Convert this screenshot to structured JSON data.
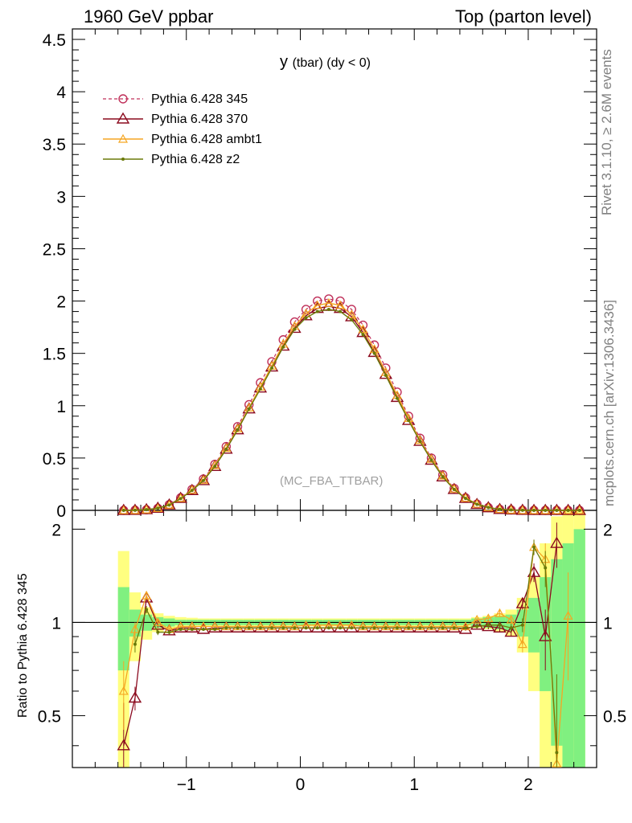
{
  "header": {
    "left": "1960 GeV ppbar",
    "right": "Top (parton level)"
  },
  "side_labels": {
    "rivet": "Rivet 3.1.10, ≥ 2.6M events",
    "mcplots": "mcplots.cern.ch [arXiv:1306.3436]"
  },
  "colors": {
    "p345": "#c0305a",
    "p370": "#8b0a1e",
    "ambt1": "#f5a623",
    "z2": "#6b7a0a",
    "band_inner": "#80f080",
    "band_outer": "#ffff80"
  },
  "chart_data": [
    {
      "type": "line",
      "title": "y",
      "title_sub": "(tbar) (dy < 0)",
      "annotation": "(MC_FBA_TTBAR)",
      "xlim": [
        -2.0,
        2.6
      ],
      "ylim": [
        0,
        4.6
      ],
      "yticks": [
        "0",
        "0.5",
        "1",
        "1.5",
        "2",
        "2.5",
        "3",
        "3.5",
        "4",
        "4.5"
      ],
      "legend_placement": "top-left",
      "x": [
        -1.55,
        -1.45,
        -1.35,
        -1.25,
        -1.15,
        -1.05,
        -0.95,
        -0.85,
        -0.75,
        -0.65,
        -0.55,
        -0.45,
        -0.35,
        -0.25,
        -0.15,
        -0.05,
        0.05,
        0.15,
        0.25,
        0.35,
        0.45,
        0.55,
        0.65,
        0.75,
        0.85,
        0.95,
        1.05,
        1.15,
        1.25,
        1.35,
        1.45,
        1.55,
        1.65,
        1.75,
        1.85,
        1.95,
        2.05,
        2.15,
        2.25,
        2.35,
        2.45
      ],
      "series": [
        {
          "name": "Pythia 6.428 345",
          "values": [
            0.0,
            0.002,
            0.006,
            0.02,
            0.055,
            0.12,
            0.2,
            0.3,
            0.44,
            0.61,
            0.8,
            1.01,
            1.22,
            1.42,
            1.63,
            1.8,
            1.92,
            2.0,
            2.02,
            2.0,
            1.92,
            1.77,
            1.58,
            1.36,
            1.13,
            0.9,
            0.69,
            0.5,
            0.34,
            0.21,
            0.12,
            0.06,
            0.027,
            0.01,
            0.004,
            0.001,
            0.0,
            0.0,
            0.0,
            0.0,
            0.0
          ]
        },
        {
          "name": "Pythia 6.428 370",
          "values": [
            0.0,
            0.001,
            0.007,
            0.021,
            0.052,
            0.115,
            0.19,
            0.285,
            0.42,
            0.585,
            0.77,
            0.97,
            1.17,
            1.37,
            1.57,
            1.74,
            1.86,
            1.93,
            1.95,
            1.93,
            1.85,
            1.7,
            1.51,
            1.3,
            1.08,
            0.86,
            0.66,
            0.48,
            0.32,
            0.2,
            0.115,
            0.057,
            0.026,
            0.009,
            0.004,
            0.001,
            0.0,
            0.0,
            0.0,
            0.0,
            0.0
          ]
        },
        {
          "name": "Pythia 6.428 ambt1",
          "values": [
            0.0,
            0.001,
            0.007,
            0.02,
            0.052,
            0.116,
            0.195,
            0.29,
            0.43,
            0.595,
            0.78,
            0.98,
            1.18,
            1.38,
            1.59,
            1.76,
            1.88,
            1.96,
            1.98,
            1.96,
            1.87,
            1.73,
            1.54,
            1.32,
            1.1,
            0.88,
            0.67,
            0.49,
            0.33,
            0.205,
            0.118,
            0.061,
            0.028,
            0.011,
            0.004,
            0.001,
            0.0,
            0.0,
            0.0,
            0.0,
            0.0
          ]
        },
        {
          "name": "Pythia 6.428 z2",
          "values": [
            0.0,
            0.001,
            0.007,
            0.02,
            0.051,
            0.112,
            0.19,
            0.285,
            0.42,
            0.585,
            0.77,
            0.97,
            1.16,
            1.36,
            1.56,
            1.73,
            1.84,
            1.9,
            1.92,
            1.9,
            1.82,
            1.68,
            1.5,
            1.29,
            1.07,
            0.86,
            0.66,
            0.48,
            0.32,
            0.2,
            0.114,
            0.058,
            0.027,
            0.01,
            0.004,
            0.001,
            0.0,
            0.0,
            0.0,
            0.0,
            0.0
          ]
        }
      ]
    },
    {
      "type": "line",
      "ylabel": "Ratio to Pythia 6.428 345",
      "xlim": [
        -2.0,
        2.6
      ],
      "ylim": [
        0.34,
        2.3
      ],
      "ylog": true,
      "xticks": [
        "−1",
        "0",
        "1",
        "2"
      ],
      "yticks": [
        "0.5",
        "1",
        "2"
      ],
      "x": [
        -1.55,
        -1.45,
        -1.35,
        -1.25,
        -1.15,
        -1.05,
        -0.95,
        -0.85,
        -0.75,
        -0.65,
        -0.55,
        -0.45,
        -0.35,
        -0.25,
        -0.15,
        -0.05,
        0.05,
        0.15,
        0.25,
        0.35,
        0.45,
        0.55,
        0.65,
        0.75,
        0.85,
        0.95,
        1.05,
        1.15,
        1.25,
        1.35,
        1.45,
        1.55,
        1.65,
        1.75,
        1.85,
        1.95,
        2.05,
        2.15,
        2.25,
        2.35,
        2.45
      ],
      "band_inner": [
        0.3,
        0.1,
        0.06,
        0.04,
        0.03,
        0.02,
        0.02,
        0.02,
        0.02,
        0.02,
        0.02,
        0.02,
        0.02,
        0.02,
        0.02,
        0.02,
        0.02,
        0.02,
        0.02,
        0.02,
        0.02,
        0.02,
        0.02,
        0.02,
        0.02,
        0.02,
        0.02,
        0.02,
        0.02,
        0.02,
        0.02,
        0.03,
        0.04,
        0.05,
        0.06,
        0.1,
        0.2,
        0.4,
        0.6,
        0.8,
        1.0
      ],
      "band_outer": [
        0.7,
        0.25,
        0.12,
        0.07,
        0.05,
        0.04,
        0.035,
        0.03,
        0.03,
        0.03,
        0.03,
        0.03,
        0.03,
        0.03,
        0.03,
        0.03,
        0.03,
        0.03,
        0.03,
        0.03,
        0.03,
        0.03,
        0.03,
        0.03,
        0.03,
        0.03,
        0.03,
        0.03,
        0.03,
        0.03,
        0.03,
        0.04,
        0.05,
        0.07,
        0.1,
        0.2,
        0.4,
        0.8,
        1.2,
        1.5,
        1.8
      ],
      "series": [
        {
          "name": "Pythia 6.428 370",
          "values": [
            0.4,
            0.57,
            1.2,
            0.98,
            0.94,
            0.96,
            0.96,
            0.95,
            0.96,
            0.96,
            0.96,
            0.96,
            0.96,
            0.96,
            0.96,
            0.96,
            0.96,
            0.96,
            0.96,
            0.96,
            0.96,
            0.96,
            0.96,
            0.96,
            0.96,
            0.96,
            0.96,
            0.96,
            0.96,
            0.96,
            0.95,
            0.98,
            0.97,
            0.96,
            0.93,
            1.15,
            1.45,
            0.9,
            1.8,
            null,
            null
          ]
        },
        {
          "name": "Pythia 6.428 ambt1",
          "values": [
            0.6,
            0.95,
            1.22,
            1.0,
            0.95,
            0.97,
            0.97,
            0.97,
            0.97,
            0.97,
            0.97,
            0.97,
            0.97,
            0.97,
            0.97,
            0.97,
            0.98,
            0.98,
            0.98,
            0.98,
            0.98,
            0.97,
            0.97,
            0.97,
            0.97,
            0.97,
            0.97,
            0.97,
            0.97,
            0.97,
            0.97,
            1.02,
            1.03,
            1.07,
            1.02,
            0.85,
            1.75,
            1.6,
            0.35,
            1.05,
            null
          ]
        },
        {
          "name": "Pythia 6.428 z2",
          "values": [
            null,
            0.85,
            1.1,
            0.93,
            0.93,
            0.95,
            0.95,
            0.95,
            0.95,
            0.96,
            0.96,
            0.96,
            0.96,
            0.96,
            0.96,
            0.96,
            0.96,
            0.96,
            0.96,
            0.96,
            0.96,
            0.96,
            0.96,
            0.96,
            0.96,
            0.96,
            0.96,
            0.96,
            0.96,
            0.96,
            0.96,
            0.97,
            0.98,
            0.98,
            0.96,
            0.98,
            1.75,
            1.5,
            0.38,
            null,
            null
          ]
        }
      ]
    }
  ]
}
